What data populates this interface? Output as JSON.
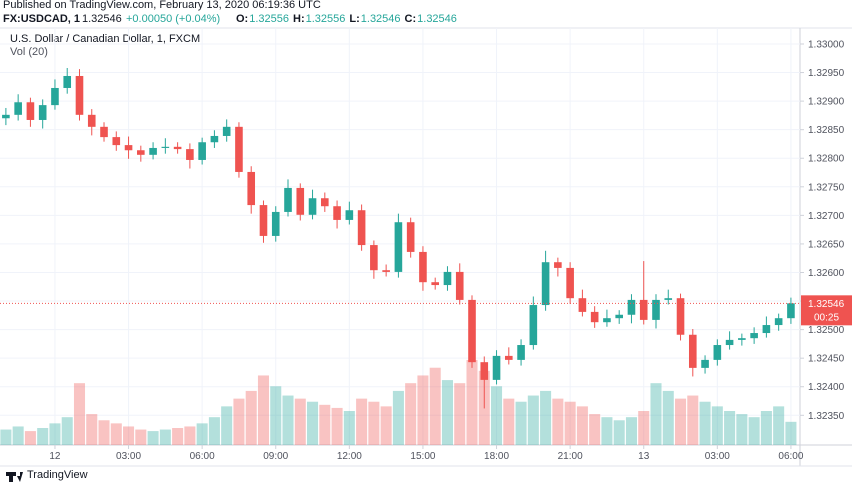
{
  "header": {
    "published": "Published on TradingView.com, February 13, 2020 06:19:36 UTC",
    "symbol": "FX:USDCAD, 1",
    "last": "1.32546",
    "change": "+0.00050 (+0.04%)",
    "ohlc": [
      {
        "key": "O:",
        "value": "1.32556"
      },
      {
        "key": "H:",
        "value": "1.32556"
      },
      {
        "key": "L:",
        "value": "1.32546"
      },
      {
        "key": "C:",
        "value": "1.32546"
      }
    ]
  },
  "footer": {
    "brand": "TradingView"
  },
  "chart_data": {
    "type": "candlestick",
    "title": "U.S. Dollar / Canadian Dollar, 1, FXCM",
    "volume_label": "Vol (20)",
    "price_label": "1.32546",
    "countdown": "00:25",
    "up_color": "#26a69a",
    "down_color": "#ef5350",
    "grid": true,
    "x": [
      -2,
      -1.5,
      -1,
      -0.5,
      0,
      0.5,
      1,
      1.5,
      2,
      2.5,
      3,
      3.5,
      4,
      4.5,
      5,
      5.5,
      6,
      6.5,
      7,
      7.5,
      8,
      8.5,
      9,
      9.5,
      10,
      10.5,
      11,
      11.5,
      12,
      12.5,
      13,
      13.5,
      14,
      14.5,
      15,
      15.5,
      16,
      16.5,
      17,
      17.5,
      18,
      18.5,
      19,
      19.5,
      20,
      20.5,
      21,
      21.5,
      22,
      22.5,
      23,
      23.5,
      24,
      24.5,
      25,
      25.5,
      26,
      26.5,
      27,
      27.5,
      28,
      28.5,
      29,
      29.5,
      30
    ],
    "open": [
      1.3287,
      1.32876,
      1.32898,
      1.32867,
      1.32893,
      1.32923,
      1.32944,
      1.32876,
      1.32855,
      1.32837,
      1.32823,
      1.32814,
      1.32806,
      1.32818,
      1.3282,
      1.32816,
      1.32797,
      1.32828,
      1.32839,
      1.32855,
      1.32776,
      1.32718,
      1.32664,
      1.32706,
      1.32748,
      1.32701,
      1.3273,
      1.32716,
      1.32692,
      1.32709,
      1.32648,
      1.32604,
      1.32601,
      1.32688,
      1.32636,
      1.32583,
      1.32578,
      1.32601,
      1.32552,
      1.32443,
      1.32412,
      1.32454,
      1.32447,
      1.32473,
      1.32543,
      1.32618,
      1.32608,
      1.32555,
      1.32531,
      1.32513,
      1.3252,
      1.32526,
      1.32552,
      1.32517,
      1.32552,
      1.32555,
      1.32491,
      1.32433,
      1.32447,
      1.32473,
      1.32482,
      1.32485,
      1.32494,
      1.32508,
      1.3252
    ],
    "high": [
      1.32888,
      1.32912,
      1.32906,
      1.32903,
      1.32938,
      1.32958,
      1.32956,
      1.32886,
      1.32863,
      1.32847,
      1.32838,
      1.32822,
      1.32828,
      1.32835,
      1.32828,
      1.32826,
      1.32836,
      1.32849,
      1.32868,
      1.32863,
      1.32786,
      1.32726,
      1.32716,
      1.32763,
      1.32756,
      1.32745,
      1.3274,
      1.32726,
      1.32724,
      1.32719,
      1.32656,
      1.32614,
      1.32703,
      1.32696,
      1.32646,
      1.32591,
      1.32611,
      1.32616,
      1.3256,
      1.32453,
      1.32464,
      1.32469,
      1.32483,
      1.32558,
      1.32638,
      1.32626,
      1.32618,
      1.3257,
      1.32541,
      1.32535,
      1.32534,
      1.32562,
      1.3262,
      1.32562,
      1.3257,
      1.32563,
      1.32501,
      1.32455,
      1.32483,
      1.32497,
      1.32493,
      1.32504,
      1.32523,
      1.32528,
      1.32556
    ],
    "low": [
      1.32858,
      1.32866,
      1.32855,
      1.32852,
      1.32885,
      1.32913,
      1.32866,
      1.3284,
      1.32829,
      1.32813,
      1.32799,
      1.32794,
      1.32798,
      1.32808,
      1.32808,
      1.32782,
      1.32789,
      1.32818,
      1.32829,
      1.32766,
      1.32703,
      1.32652,
      1.32654,
      1.32698,
      1.32691,
      1.32693,
      1.32706,
      1.32677,
      1.32684,
      1.32638,
      1.32589,
      1.32593,
      1.32591,
      1.32626,
      1.32568,
      1.3257,
      1.32568,
      1.32544,
      1.32433,
      1.32362,
      1.32404,
      1.32439,
      1.32437,
      1.32465,
      1.32533,
      1.32593,
      1.32545,
      1.32523,
      1.32503,
      1.32505,
      1.3251,
      1.32511,
      1.32509,
      1.32502,
      1.32544,
      1.32481,
      1.32418,
      1.32423,
      1.32437,
      1.32465,
      1.32472,
      1.32475,
      1.32486,
      1.32498,
      1.3251
    ],
    "close": [
      1.32876,
      1.32898,
      1.32867,
      1.32893,
      1.32923,
      1.32944,
      1.32876,
      1.32855,
      1.32837,
      1.32823,
      1.32814,
      1.32806,
      1.32818,
      1.3282,
      1.32816,
      1.32797,
      1.32828,
      1.32839,
      1.32855,
      1.32776,
      1.32718,
      1.32664,
      1.32706,
      1.32748,
      1.32701,
      1.3273,
      1.32716,
      1.32692,
      1.32709,
      1.32648,
      1.32604,
      1.32601,
      1.32688,
      1.32636,
      1.32583,
      1.32578,
      1.32601,
      1.32552,
      1.32443,
      1.32412,
      1.32454,
      1.32447,
      1.32473,
      1.32543,
      1.32618,
      1.32608,
      1.32555,
      1.32531,
      1.32513,
      1.3252,
      1.32526,
      1.32552,
      1.32517,
      1.32552,
      1.32555,
      1.32491,
      1.32433,
      1.32447,
      1.32473,
      1.32482,
      1.32485,
      1.32494,
      1.32508,
      1.3252,
      1.32546
    ],
    "volume": [
      10,
      12,
      9,
      11,
      14,
      18,
      40,
      20,
      16,
      14,
      12,
      10,
      9,
      10,
      11,
      12,
      14,
      18,
      25,
      30,
      35,
      45,
      38,
      32,
      30,
      28,
      26,
      24,
      22,
      30,
      28,
      25,
      35,
      40,
      45,
      50,
      42,
      40,
      55,
      48,
      38,
      30,
      28,
      32,
      35,
      30,
      28,
      25,
      20,
      18,
      16,
      18,
      22,
      40,
      35,
      30,
      32,
      28,
      25,
      22,
      20,
      18,
      22,
      25,
      15
    ],
    "xlim": [
      -2.24,
      30.37
    ],
    "xticks": [
      {
        "value": 0,
        "label": "12"
      },
      {
        "value": 3,
        "label": "03:00"
      },
      {
        "value": 6,
        "label": "06:00"
      },
      {
        "value": 9,
        "label": "09:00"
      },
      {
        "value": 12,
        "label": "12:00"
      },
      {
        "value": 15,
        "label": "15:00"
      },
      {
        "value": 18,
        "label": "18:00"
      },
      {
        "value": 21,
        "label": "21:00"
      },
      {
        "value": 24,
        "label": "13"
      },
      {
        "value": 27,
        "label": "03:00"
      },
      {
        "value": 30,
        "label": "06:00"
      }
    ],
    "ylim": [
      1.32298,
      1.33028
    ],
    "yticks": [
      {
        "value": 1.3235,
        "label": "1.32350"
      },
      {
        "value": 1.324,
        "label": "1.32400"
      },
      {
        "value": 1.3245,
        "label": "1.32450"
      },
      {
        "value": 1.325,
        "label": "1.32500"
      },
      {
        "value": 1.3255,
        "label": "1.32550"
      },
      {
        "value": 1.326,
        "label": "1.32600"
      },
      {
        "value": 1.3265,
        "label": "1.32650"
      },
      {
        "value": 1.327,
        "label": "1.32700"
      },
      {
        "value": 1.3275,
        "label": "1.32750"
      },
      {
        "value": 1.328,
        "label": "1.32800"
      },
      {
        "value": 1.3285,
        "label": "1.32850"
      },
      {
        "value": 1.329,
        "label": "1.32900"
      },
      {
        "value": 1.3295,
        "label": "1.32950"
      },
      {
        "value": 1.33,
        "label": "1.33000"
      }
    ]
  }
}
